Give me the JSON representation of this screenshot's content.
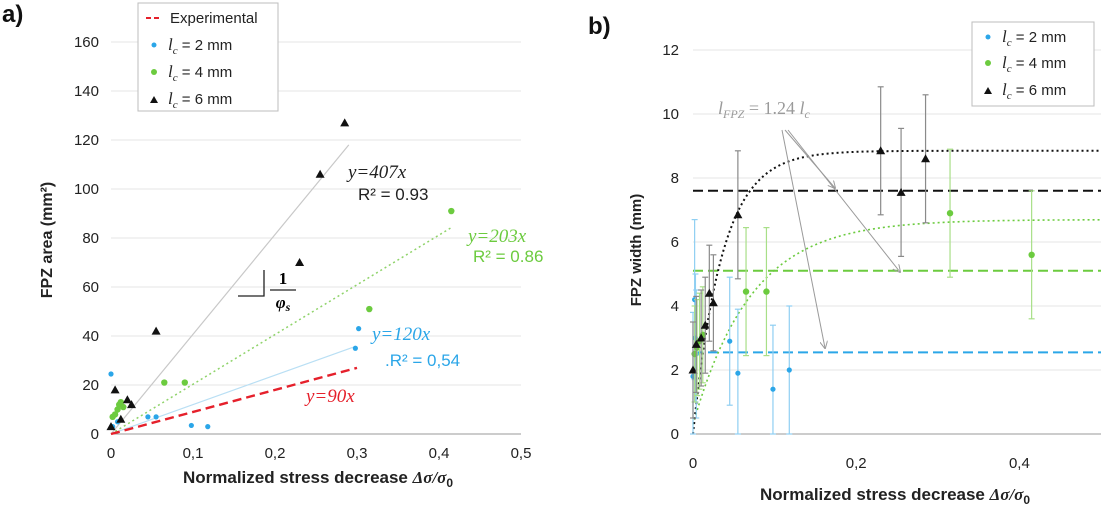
{
  "panel_a": {
    "label": "a)",
    "legend": [
      {
        "label": "Experimental",
        "color": "#e5202b"
      },
      {
        "label": "l_c = 2 mm",
        "color": "#2ba6e8"
      },
      {
        "label": "l_c = 4 mm",
        "color": "#6ccb3f"
      },
      {
        "label": "l_c = 6 mm",
        "color": "#111111"
      }
    ],
    "slope_num": "1",
    "slope_den": "φs",
    "annotations": {
      "fit6": "y=407x",
      "r2_6": "R² = 0.93",
      "fit4": "y=203x",
      "r2_4": "R² = 0.86",
      "fit2": "y=120x",
      "r2_2": ".R² = 0,54",
      "exp": "y=90x"
    }
  },
  "panel_b": {
    "label": "b)",
    "legend": [
      {
        "label": "l_c = 2 mm",
        "color": "#2ba6e8"
      },
      {
        "label": "l_c = 4 mm",
        "color": "#6ccb3f"
      },
      {
        "label": "l_c = 6 mm",
        "color": "#111111"
      }
    ],
    "annotation": "l_FPZ = 1.24 l_c"
  },
  "chart_data": [
    {
      "type": "scatter",
      "xlabel": "Normalized stress decrease Δσ/σ0",
      "ylabel": "FPZ area (mm²)",
      "xlim": [
        0,
        0.5
      ],
      "ylim": [
        0,
        160
      ],
      "xticks": [
        "0",
        "0,1",
        "0,2",
        "0,3",
        "0,4",
        "0,5"
      ],
      "yticks": [
        "0",
        "20",
        "40",
        "60",
        "80",
        "100",
        "120",
        "140",
        "160"
      ],
      "series": [
        {
          "name": "l_c = 2 mm",
          "color": "#2ba6e8",
          "x": [
            0.0,
            0.002,
            0.008,
            0.045,
            0.055,
            0.098,
            0.118,
            0.298,
            0.302
          ],
          "y": [
            24.5,
            3,
            5,
            7,
            7,
            3.5,
            3,
            35,
            43
          ],
          "fit_slope": 120
        },
        {
          "name": "l_c = 4 mm",
          "color": "#6ccb3f",
          "x": [
            0.002,
            0.005,
            0.008,
            0.01,
            0.012,
            0.015,
            0.065,
            0.09,
            0.315,
            0.415
          ],
          "y": [
            7,
            8,
            10,
            12,
            13,
            11,
            21,
            21,
            51,
            91
          ],
          "fit_slope": 203
        },
        {
          "name": "l_c = 6 mm",
          "color": "#111111",
          "x": [
            0.0,
            0.005,
            0.012,
            0.02,
            0.025,
            0.055,
            0.23,
            0.255,
            0.285
          ],
          "y": [
            3,
            18,
            6,
            14,
            12,
            42,
            70,
            106,
            127
          ],
          "fit_slope": 407
        },
        {
          "name": "Experimental",
          "color": "#e5202b",
          "fit_slope": 90
        }
      ]
    },
    {
      "type": "scatter",
      "xlabel": "Normalized stress decrease Δσ/σ0",
      "ylabel": "FPZ width (mm)",
      "xlim": [
        0,
        0.5
      ],
      "ylim": [
        0,
        12
      ],
      "xticks": [
        "0",
        "0,2",
        "0,4"
      ],
      "yticks": [
        "0",
        "2",
        "4",
        "6",
        "8",
        "10",
        "12"
      ],
      "series": [
        {
          "name": "l_c = 2 mm",
          "color": "#2ba6e8",
          "x": [
            0.0,
            0.002,
            0.003,
            0.004,
            0.045,
            0.055,
            0.098,
            0.118
          ],
          "y": [
            1.8,
            4.2,
            3.0,
            2.5,
            2.9,
            1.9,
            1.4,
            2.0
          ],
          "err": [
            2.0,
            2.5,
            2.0,
            2.0,
            2.0,
            2.0,
            2.0,
            2.0
          ],
          "ref_line": 2.55
        },
        {
          "name": "l_c = 4 mm",
          "color": "#6ccb3f",
          "x": [
            0.002,
            0.005,
            0.008,
            0.012,
            0.065,
            0.09,
            0.315,
            0.415
          ],
          "y": [
            2.5,
            2.7,
            2.9,
            3.1,
            4.45,
            4.45,
            6.9,
            5.6
          ],
          "err": [
            1.5,
            1.5,
            1.5,
            1.5,
            2.0,
            2.0,
            2.0,
            2.0
          ],
          "ref_line": 5.1
        },
        {
          "name": "l_c = 6 mm",
          "color": "#111111",
          "x": [
            0.0,
            0.004,
            0.01,
            0.015,
            0.02,
            0.025,
            0.055,
            0.23,
            0.255,
            0.285
          ],
          "y": [
            2.0,
            2.8,
            3.0,
            3.4,
            4.4,
            4.1,
            6.85,
            8.85,
            7.55,
            8.6
          ],
          "err": [
            1.5,
            1.5,
            1.5,
            1.5,
            1.5,
            1.5,
            2.0,
            2.0,
            2.0,
            2.0
          ],
          "ref_line": 7.6
        }
      ]
    }
  ]
}
